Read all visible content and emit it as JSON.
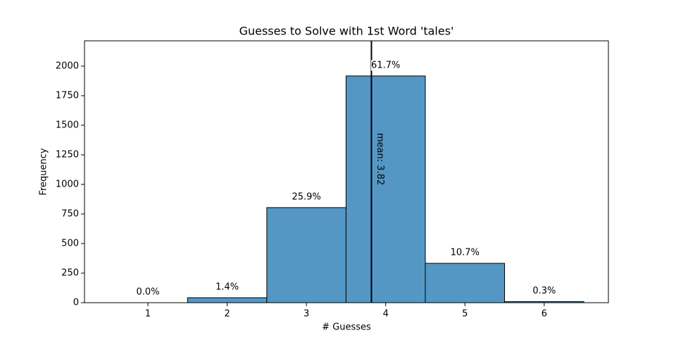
{
  "chart_data": {
    "type": "histogram",
    "title": "Guesses to Solve with 1st Word 'tales'",
    "xlabel": "# Guesses",
    "ylabel": "Frequency",
    "bins": [
      0.5,
      1.5,
      2.5,
      3.5,
      4.5,
      5.5,
      6.5
    ],
    "counts": [
      0,
      42,
      804,
      1917,
      333,
      9
    ],
    "bar_labels": [
      "0.0%",
      "1.4%",
      "25.9%",
      "61.7%",
      "10.7%",
      "0.3%"
    ],
    "color": "#5497c5",
    "edgecolor": "#000000",
    "mean_line": {
      "x": 3.82,
      "label": "mean: 3.82",
      "color": "#000000"
    },
    "xlim": [
      0.2,
      6.81
    ],
    "ylim": [
      0,
      2214
    ],
    "xticks": [
      1,
      2,
      3,
      4,
      5,
      6
    ],
    "yticks": [
      0,
      250,
      500,
      750,
      1000,
      1250,
      1500,
      1750,
      2000
    ]
  }
}
